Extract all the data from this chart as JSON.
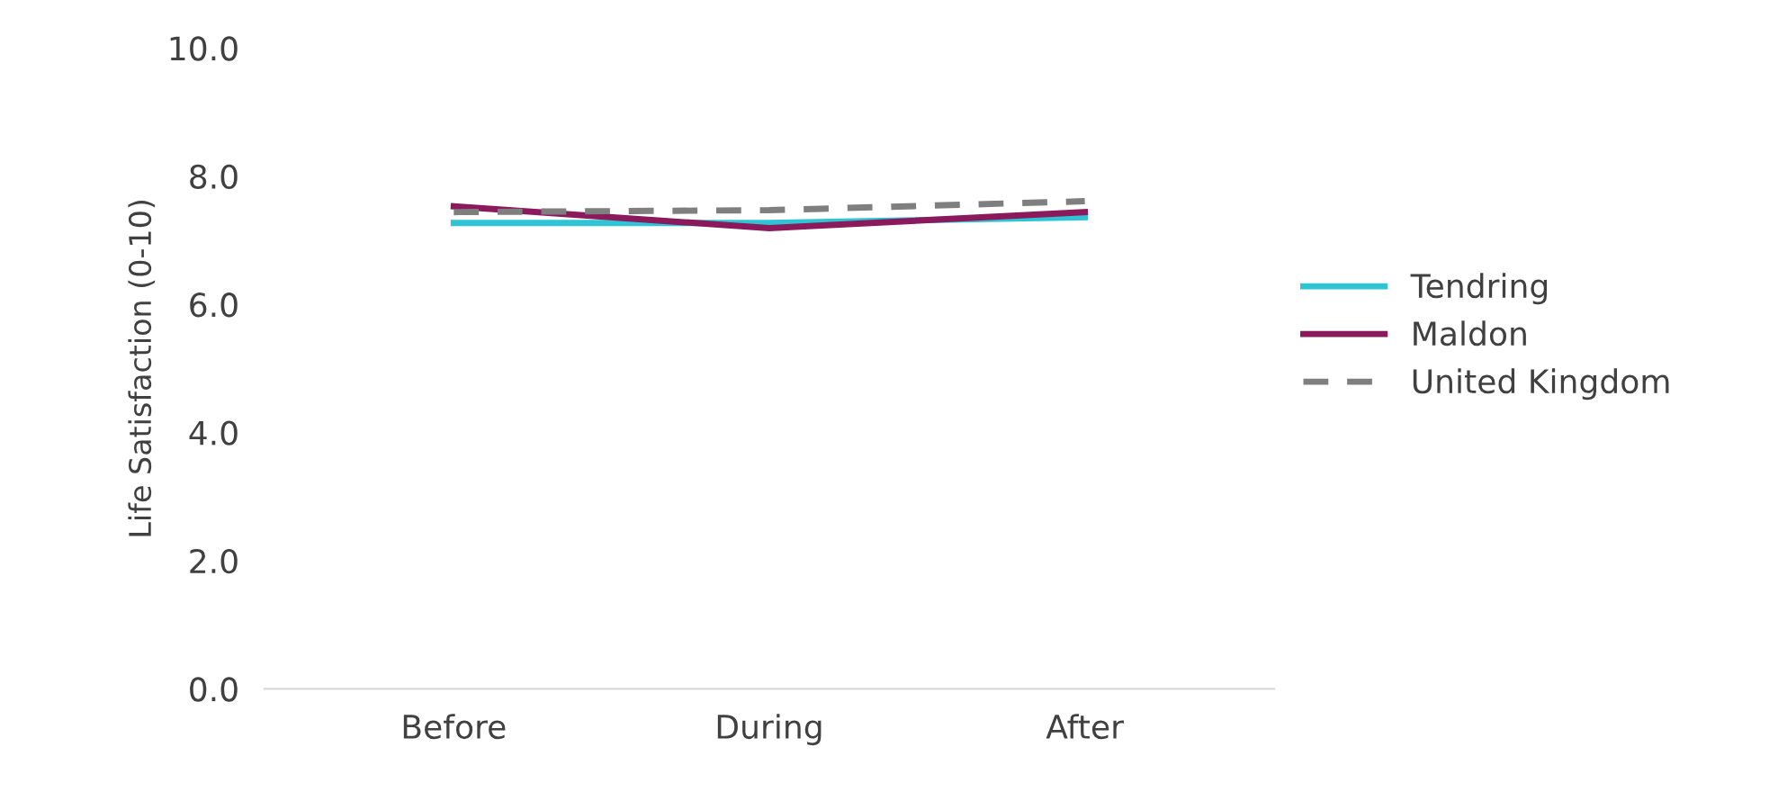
{
  "chart_data": {
    "type": "line",
    "ylabel": "Life Satisfaction (0-10)",
    "categories": [
      "Before",
      "During",
      "After"
    ],
    "series": [
      {
        "name": "Tendring",
        "color": "#2ec4d3",
        "values": [
          7.27,
          7.27,
          7.36
        ],
        "line_style": "solid"
      },
      {
        "name": "Maldon",
        "color": "#8b1a5c",
        "values": [
          7.53,
          7.19,
          7.44
        ],
        "line_style": "solid"
      },
      {
        "name": "United Kingdom",
        "color": "#7f7f7f",
        "values": [
          7.44,
          7.47,
          7.61
        ],
        "line_style": "dashed"
      }
    ],
    "ylim": [
      0,
      10
    ],
    "yticks": [
      {
        "value": 0,
        "label": "0.0"
      },
      {
        "value": 2,
        "label": "2.0"
      },
      {
        "value": 4,
        "label": "4.0"
      },
      {
        "value": 6,
        "label": "6.0"
      },
      {
        "value": 8,
        "label": "8.0"
      },
      {
        "value": 10,
        "label": "10.0"
      }
    ],
    "grid": false,
    "legend": "right",
    "marker": "none"
  }
}
